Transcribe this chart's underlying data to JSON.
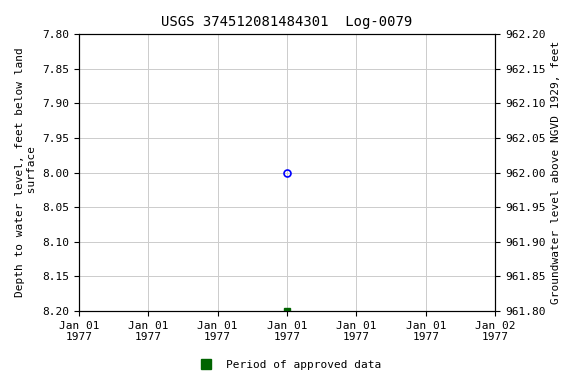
{
  "title": "USGS 374512081484301  Log-0079",
  "ylabel_left": "Depth to water level, feet below land\n surface",
  "ylabel_right": "Groundwater level above NGVD 1929, feet",
  "ylim_left": [
    8.2,
    7.8
  ],
  "ylim_right": [
    961.8,
    962.2
  ],
  "yticks_left": [
    7.8,
    7.85,
    7.9,
    7.95,
    8.0,
    8.05,
    8.1,
    8.15,
    8.2
  ],
  "yticks_right": [
    961.8,
    961.85,
    961.9,
    961.95,
    962.0,
    962.05,
    962.1,
    962.15,
    962.2
  ],
  "xtick_labels": [
    "Jan 01\n1977",
    "Jan 01\n1977",
    "Jan 01\n1977",
    "Jan 01\n1977",
    "Jan 01\n1977",
    "Jan 01\n1977",
    "Jan 02\n1977"
  ],
  "xlim": [
    0,
    6
  ],
  "xtick_positions": [
    0,
    1,
    2,
    3,
    4,
    5,
    6
  ],
  "data_blue_x": 3,
  "data_blue_y": 8.0,
  "data_green_x": 3,
  "data_green_y": 8.2,
  "blue_marker": "o",
  "blue_color": "#0000FF",
  "green_color": "#006400",
  "green_marker": "s",
  "legend_label": "Period of approved data",
  "background_color": "#ffffff",
  "grid_color": "#cccccc",
  "title_fontsize": 10,
  "axis_label_fontsize": 8,
  "tick_fontsize": 8
}
